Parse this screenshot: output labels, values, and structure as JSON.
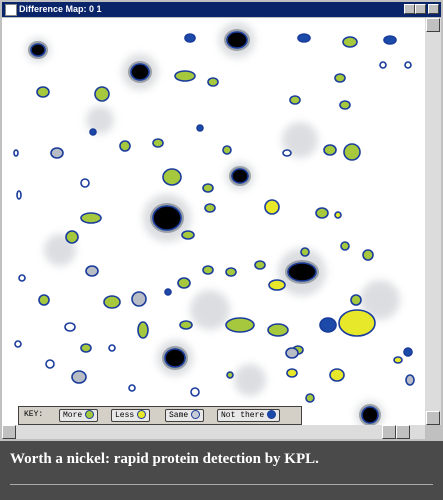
{
  "window": {
    "title": "Difference Map: 0 1"
  },
  "key": {
    "label": "KEY:",
    "items": [
      "More",
      "Less",
      "Same",
      "Not there"
    ]
  },
  "caption": "Worth a nickel: rapid protein detection by KPL."
}
